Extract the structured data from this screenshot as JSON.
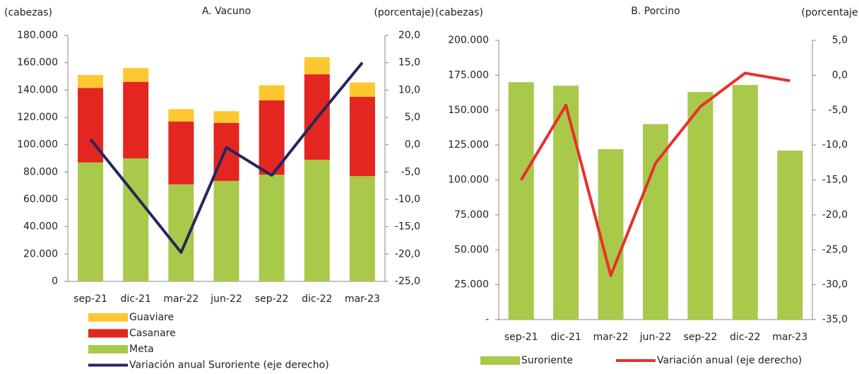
{
  "chart_data": [
    {
      "type": "bar",
      "stacked": true,
      "title": "A. Vacuno",
      "y_label": "(cabezas)",
      "y2_label": "(porcentaje)",
      "categories": [
        "sep-21",
        "dic-21",
        "mar-22",
        "jun-22",
        "sep-22",
        "dic-22",
        "mar-23"
      ],
      "series": [
        {
          "name": "Meta",
          "color": "#a9c94a",
          "values": [
            87000,
            90000,
            71000,
            73500,
            78000,
            89000,
            77000
          ]
        },
        {
          "name": "Casanare",
          "color": "#e3261f",
          "values": [
            54500,
            56000,
            46000,
            42500,
            54500,
            62500,
            58000
          ]
        },
        {
          "name": "Guaviare",
          "color": "#fdc82f",
          "values": [
            9500,
            10000,
            9000,
            8500,
            11000,
            12500,
            10500
          ]
        },
        {
          "name": "Variación anual Suroriente (eje derecho)",
          "type": "line",
          "axis": "y2",
          "color": "#26265f",
          "values": [
            1.0,
            -9.3,
            -19.7,
            -0.5,
            -5.6,
            4.9,
            15.0
          ]
        }
      ],
      "ylim": [
        0,
        180000
      ],
      "yticks": [
        0,
        {
          "value": 20000,
          "label": "20.000"
        },
        {
          "value": 40000,
          "label": "40.000"
        },
        {
          "value": 60000,
          "label": "60.000"
        },
        {
          "value": 80000,
          "label": "80.000"
        },
        {
          "value": 100000,
          "label": "100.000"
        },
        {
          "value": 120000,
          "label": "120.000"
        },
        {
          "value": 140000,
          "label": "140.000"
        },
        {
          "value": 160000,
          "label": "160.000"
        },
        {
          "value": 180000,
          "label": "180.000"
        }
      ],
      "y2lim": [
        -25,
        20
      ],
      "y2ticks": [
        {
          "value": -25,
          "label": "-25,0"
        },
        {
          "value": -20,
          "label": "-20,0"
        },
        {
          "value": -15,
          "label": "-15,0"
        },
        {
          "value": -10,
          "label": "-10,0"
        },
        {
          "value": -5,
          "label": "-5,0"
        },
        {
          "value": 0,
          "label": "0,0"
        },
        {
          "value": 5,
          "label": "5,0"
        },
        {
          "value": 10,
          "label": "10,0"
        },
        {
          "value": 15,
          "label": "15,0"
        },
        {
          "value": 20,
          "label": "20,0"
        }
      ]
    },
    {
      "type": "bar",
      "title": "B. Porcino",
      "y_label": "(cabezas)",
      "y2_label": "(porcentaje)",
      "categories": [
        "sep-21",
        "dic-21",
        "mar-22",
        "jun-22",
        "sep-22",
        "dic-22",
        "mar-23"
      ],
      "series": [
        {
          "name": "Suroriente",
          "color": "#a9c94a",
          "values": [
            170000,
            167500,
            122000,
            140000,
            163000,
            168000,
            121000
          ]
        },
        {
          "name": "Variación anual (eje derecho)",
          "type": "line",
          "axis": "y2",
          "color": "#e8302a",
          "values": [
            -15.0,
            -4.3,
            -28.7,
            -12.6,
            -4.5,
            0.3,
            -0.8
          ]
        }
      ],
      "ylim": [
        0,
        200000
      ],
      "yticks": [
        {
          "value": 0,
          "label": "-"
        },
        {
          "value": 25000,
          "label": "25.000"
        },
        {
          "value": 50000,
          "label": "50.000"
        },
        {
          "value": 75000,
          "label": "75.000"
        },
        {
          "value": 100000,
          "label": "100.000"
        },
        {
          "value": 125000,
          "label": "125.000"
        },
        {
          "value": 150000,
          "label": "150.000"
        },
        {
          "value": 175000,
          "label": "175.000"
        },
        {
          "value": 200000,
          "label": "200.000"
        }
      ],
      "y2lim": [
        -35,
        5
      ],
      "y2ticks": [
        {
          "value": -35,
          "label": "-35,0"
        },
        {
          "value": -30,
          "label": "-30,0"
        },
        {
          "value": -25,
          "label": "-25,0"
        },
        {
          "value": -20,
          "label": "-20,0"
        },
        {
          "value": -15,
          "label": "-15,0"
        },
        {
          "value": -10,
          "label": "-10,0"
        },
        {
          "value": -5,
          "label": "-5,0"
        },
        {
          "value": 0,
          "label": "0,0"
        },
        {
          "value": 5,
          "label": "5,0"
        }
      ]
    }
  ]
}
